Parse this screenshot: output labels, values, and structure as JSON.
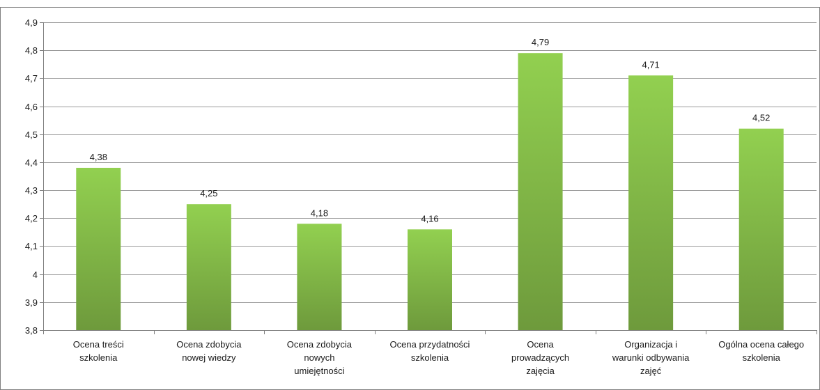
{
  "chart_data": {
    "type": "bar",
    "categories": [
      [
        "Ocena treści",
        "szkolenia"
      ],
      [
        "Ocena zdobycia",
        "nowej wiedzy"
      ],
      [
        "Ocena zdobycia",
        "nowych",
        "umiejętności"
      ],
      [
        "Ocena przydatności",
        "szkolenia"
      ],
      [
        "Ocena",
        "prowadzących",
        "zajęcia"
      ],
      [
        "Organizacja i",
        "warunki odbywania",
        "zajęć"
      ],
      [
        "Ogólna ocena całego",
        "szkolenia"
      ]
    ],
    "values": [
      4.38,
      4.25,
      4.18,
      4.16,
      4.79,
      4.71,
      4.52
    ],
    "data_labels": [
      "4,38",
      "4,25",
      "4,18",
      "4,16",
      "4,79",
      "4,71",
      "4,52"
    ],
    "yticks": [
      3.8,
      3.9,
      4.0,
      4.1,
      4.2,
      4.3,
      4.4,
      4.5,
      4.6,
      4.7,
      4.8,
      4.9
    ],
    "ytick_labels": [
      "3,8",
      "3,9",
      "4",
      "4,1",
      "4,2",
      "4,3",
      "4,4",
      "4,5",
      "4,6",
      "4,7",
      "4,8",
      "4,9"
    ],
    "ylim": [
      3.8,
      4.9
    ],
    "grid": true,
    "legend": "none",
    "colors": {
      "bar_top": "#92d050",
      "bar_bottom": "#6e9a3c",
      "grid": "#9a9a9a",
      "axis": "#7f7f7f"
    }
  }
}
